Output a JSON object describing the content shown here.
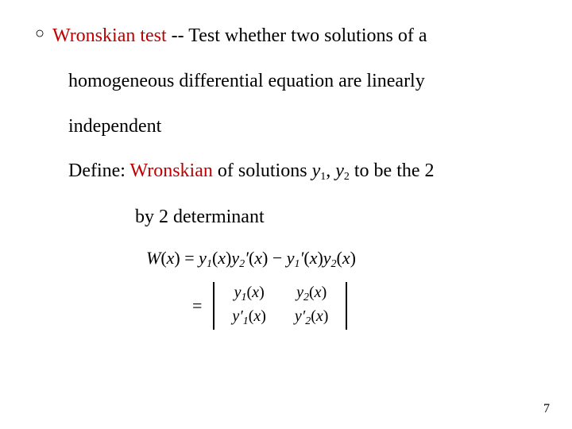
{
  "bullet": "○",
  "line1a": "Wronskian test",
  "line1b": "  -- Test whether two solutions of a",
  "line2": "homogeneous differential equation are linearly",
  "line3": "independent",
  "line4a": "Define: ",
  "line4_wr": "Wronskian",
  "line4b": " of solutions ",
  "y1": "y",
  "sub1": "1",
  "comma": ", ",
  "y2": "y",
  "sub2": "2",
  "line4c": "  to be the 2",
  "line5": "by 2 determinant",
  "eq1": {
    "W": "W",
    "x": "x",
    "eq": " = ",
    "y": "y",
    "s1": "1",
    "s2": "2",
    "prime": "′",
    "minus": " − "
  },
  "eq2": {
    "eq": "="
  },
  "det": {
    "c11a": "y",
    "c11s": "1",
    "c12a": "y",
    "c12s": "2",
    "c21a": "y",
    "c21s": "1",
    "c22a": "y",
    "c22s": "2",
    "x": "x",
    "prime": "′"
  },
  "page": "7"
}
